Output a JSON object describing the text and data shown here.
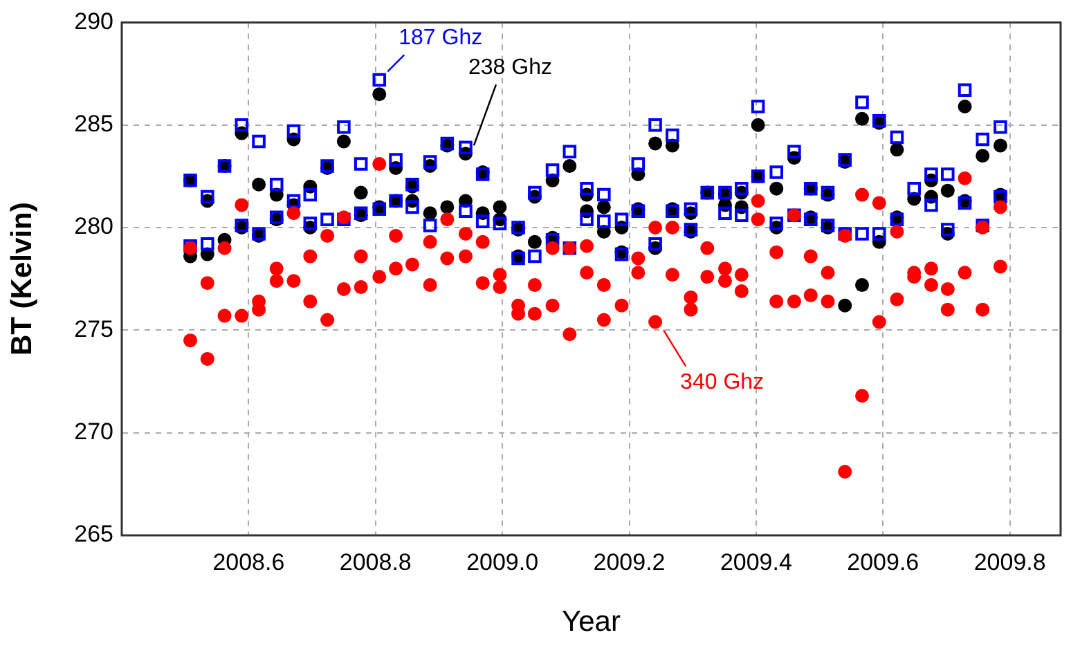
{
  "chart_data": {
    "type": "scatter",
    "xlabel": "Year",
    "ylabel": "BT (Kelvin)",
    "xlim": [
      2008.4,
      2009.88
    ],
    "xticks": [
      {
        "value": 2008.6,
        "label": "2008.6"
      },
      {
        "value": 2008.8,
        "label": "2008.8"
      },
      {
        "value": 2009.0,
        "label": "2009.0"
      },
      {
        "value": 2009.2,
        "label": "2009.2"
      },
      {
        "value": 2009.4,
        "label": "2009.4"
      },
      {
        "value": 2009.6,
        "label": "2009.6"
      },
      {
        "value": 2009.8,
        "label": "2009.8"
      }
    ],
    "ylim": [
      265,
      290
    ],
    "yticks": [
      265,
      270,
      275,
      280,
      285,
      290
    ],
    "grid": true,
    "legend": false,
    "annotations": [
      {
        "text": "340 Ghz",
        "x": 2009.241,
        "y": 275.4
      },
      {
        "text": "187 Ghz",
        "x": 2008.806,
        "y": 287.2
      },
      {
        "text": "238 Ghz",
        "x": 2008.942,
        "y": 283.6
      }
    ],
    "series": [
      {
        "color": "#ff0000",
        "marker": "circle",
        "x": [
          2008.508,
          2008.508,
          2008.535,
          2008.535,
          2008.562,
          2008.562,
          2008.589,
          2008.589,
          2008.616,
          2008.616,
          2008.644,
          2008.644,
          2008.671,
          2008.671,
          2008.697,
          2008.697,
          2008.724,
          2008.724,
          2008.75,
          2008.75,
          2008.777,
          2008.777,
          2008.806,
          2008.806,
          2008.832,
          2008.832,
          2008.858,
          2008.886,
          2008.886,
          2008.913,
          2008.913,
          2008.942,
          2008.942,
          2008.969,
          2008.969,
          2008.996,
          2008.996,
          2009.025,
          2009.025,
          2009.051,
          2009.051,
          2009.079,
          2009.079,
          2009.106,
          2009.106,
          2009.133,
          2009.133,
          2009.16,
          2009.16,
          2009.188,
          2009.214,
          2009.214,
          2009.241,
          2009.241,
          2009.268,
          2009.268,
          2009.297,
          2009.297,
          2009.323,
          2009.323,
          2009.351,
          2009.351,
          2009.377,
          2009.377,
          2009.403,
          2009.403,
          2009.432,
          2009.432,
          2009.46,
          2009.46,
          2009.486,
          2009.486,
          2009.513,
          2009.513,
          2009.54,
          2009.54,
          2009.567,
          2009.567,
          2009.594,
          2009.594,
          2009.622,
          2009.622,
          2009.649,
          2009.649,
          2009.676,
          2009.676,
          2009.702,
          2009.702,
          2009.729,
          2009.729,
          2009.757,
          2009.757,
          2009.785,
          2009.785
        ],
        "values": [
          279.0,
          274.5,
          277.3,
          273.6,
          279.0,
          275.7,
          281.1,
          275.7,
          276.4,
          276.0,
          278.0,
          277.4,
          280.7,
          277.4,
          278.6,
          276.4,
          279.6,
          275.5,
          280.5,
          277.0,
          278.6,
          277.1,
          283.1,
          277.6,
          279.6,
          278.0,
          278.2,
          279.3,
          277.2,
          280.4,
          278.5,
          279.7,
          278.6,
          279.3,
          277.3,
          277.7,
          277.1,
          276.2,
          275.8,
          277.2,
          275.8,
          279.0,
          276.2,
          279.0,
          274.8,
          279.1,
          277.8,
          277.2,
          275.5,
          276.2,
          278.5,
          277.8,
          280.0,
          275.4,
          280.0,
          277.7,
          276.6,
          276.0,
          279.0,
          277.6,
          278.0,
          277.4,
          277.7,
          276.9,
          281.3,
          280.4,
          278.8,
          276.4,
          280.6,
          276.4,
          278.6,
          276.7,
          277.8,
          276.4,
          279.6,
          268.1,
          281.6,
          271.8,
          281.2,
          275.4,
          279.8,
          276.5,
          277.8,
          277.6,
          278.0,
          277.2,
          277.0,
          276.0,
          282.4,
          277.8,
          280.0,
          276.0,
          281.0,
          278.1
        ]
      },
      {
        "color": "#0000ff",
        "marker": "square",
        "x": [
          2008.508,
          2008.508,
          2008.535,
          2008.535,
          2008.562,
          2008.589,
          2008.589,
          2008.616,
          2008.616,
          2008.644,
          2008.644,
          2008.671,
          2008.671,
          2008.697,
          2008.697,
          2008.724,
          2008.724,
          2008.75,
          2008.75,
          2008.777,
          2008.777,
          2008.806,
          2008.806,
          2008.832,
          2008.832,
          2008.858,
          2008.858,
          2008.886,
          2008.886,
          2008.913,
          2008.942,
          2008.942,
          2008.969,
          2008.969,
          2008.996,
          2009.025,
          2009.025,
          2009.051,
          2009.051,
          2009.079,
          2009.079,
          2009.106,
          2009.106,
          2009.133,
          2009.133,
          2009.16,
          2009.16,
          2009.188,
          2009.188,
          2009.214,
          2009.214,
          2009.241,
          2009.241,
          2009.268,
          2009.268,
          2009.297,
          2009.297,
          2009.323,
          2009.351,
          2009.351,
          2009.377,
          2009.377,
          2009.403,
          2009.403,
          2009.432,
          2009.432,
          2009.46,
          2009.46,
          2009.486,
          2009.486,
          2009.513,
          2009.513,
          2009.54,
          2009.54,
          2009.567,
          2009.567,
          2009.594,
          2009.594,
          2009.622,
          2009.622,
          2009.649,
          2009.676,
          2009.676,
          2009.702,
          2009.702,
          2009.729,
          2009.729,
          2009.757,
          2009.757,
          2009.785,
          2009.785
        ],
        "values": [
          282.3,
          279.1,
          281.5,
          279.2,
          283.0,
          285.0,
          280.1,
          284.2,
          279.7,
          282.1,
          280.5,
          284.7,
          281.3,
          281.6,
          280.2,
          283.0,
          280.4,
          284.9,
          280.4,
          283.1,
          280.7,
          287.2,
          280.9,
          283.3,
          281.3,
          282.1,
          281.0,
          283.2,
          280.1,
          284.1,
          283.9,
          280.8,
          282.6,
          280.3,
          280.2,
          280.0,
          278.5,
          281.7,
          278.6,
          282.8,
          279.4,
          283.7,
          279.0,
          281.9,
          280.4,
          281.6,
          280.3,
          280.4,
          278.7,
          283.1,
          280.8,
          285.0,
          279.2,
          284.5,
          280.8,
          280.9,
          279.9,
          281.7,
          281.7,
          280.7,
          281.9,
          280.6,
          285.9,
          282.5,
          282.7,
          280.2,
          283.7,
          280.6,
          281.9,
          280.4,
          281.7,
          280.1,
          283.3,
          279.7,
          286.1,
          279.7,
          285.2,
          279.7,
          284.4,
          280.4,
          281.9,
          282.6,
          281.1,
          282.6,
          279.9,
          286.7,
          281.2,
          284.3,
          280.1,
          284.9,
          281.5
        ]
      },
      {
        "color": "#000000",
        "marker": "circle",
        "x": [
          2008.508,
          2008.508,
          2008.535,
          2008.535,
          2008.562,
          2008.562,
          2008.589,
          2008.589,
          2008.616,
          2008.616,
          2008.644,
          2008.644,
          2008.671,
          2008.671,
          2008.697,
          2008.697,
          2008.724,
          2008.75,
          2008.777,
          2008.777,
          2008.806,
          2008.806,
          2008.832,
          2008.832,
          2008.858,
          2008.858,
          2008.886,
          2008.886,
          2008.913,
          2008.913,
          2008.942,
          2008.942,
          2008.969,
          2008.969,
          2008.996,
          2008.996,
          2009.025,
          2009.025,
          2009.051,
          2009.051,
          2009.079,
          2009.079,
          2009.106,
          2009.133,
          2009.133,
          2009.16,
          2009.16,
          2009.188,
          2009.188,
          2009.214,
          2009.214,
          2009.241,
          2009.241,
          2009.268,
          2009.268,
          2009.297,
          2009.297,
          2009.323,
          2009.351,
          2009.351,
          2009.377,
          2009.377,
          2009.403,
          2009.403,
          2009.432,
          2009.432,
          2009.46,
          2009.486,
          2009.486,
          2009.513,
          2009.513,
          2009.54,
          2009.54,
          2009.567,
          2009.567,
          2009.594,
          2009.594,
          2009.622,
          2009.622,
          2009.649,
          2009.676,
          2009.676,
          2009.702,
          2009.702,
          2009.729,
          2009.729,
          2009.757,
          2009.785,
          2009.785
        ],
        "values": [
          282.3,
          278.6,
          281.3,
          278.7,
          283.0,
          279.4,
          284.6,
          280.0,
          282.1,
          279.6,
          281.6,
          280.4,
          284.3,
          281.1,
          282.0,
          280.0,
          282.9,
          284.2,
          281.7,
          280.6,
          286.5,
          281.0,
          282.9,
          281.3,
          282.0,
          281.3,
          283.0,
          280.7,
          284.0,
          281.0,
          283.6,
          281.3,
          282.7,
          280.7,
          281.0,
          280.4,
          279.9,
          278.6,
          281.5,
          279.3,
          282.3,
          279.5,
          283.0,
          281.6,
          280.8,
          281.0,
          279.8,
          280.0,
          278.8,
          282.6,
          280.9,
          284.1,
          279.0,
          284.0,
          280.9,
          280.7,
          279.8,
          281.7,
          281.6,
          281.1,
          281.7,
          281.0,
          285.0,
          282.5,
          281.9,
          280.0,
          283.4,
          281.9,
          280.5,
          281.6,
          280.0,
          283.2,
          276.2,
          285.3,
          277.2,
          285.1,
          279.3,
          283.8,
          280.5,
          281.4,
          282.3,
          281.5,
          281.8,
          279.7,
          285.9,
          281.3,
          283.5,
          284.0,
          281.6
        ]
      }
    ]
  }
}
